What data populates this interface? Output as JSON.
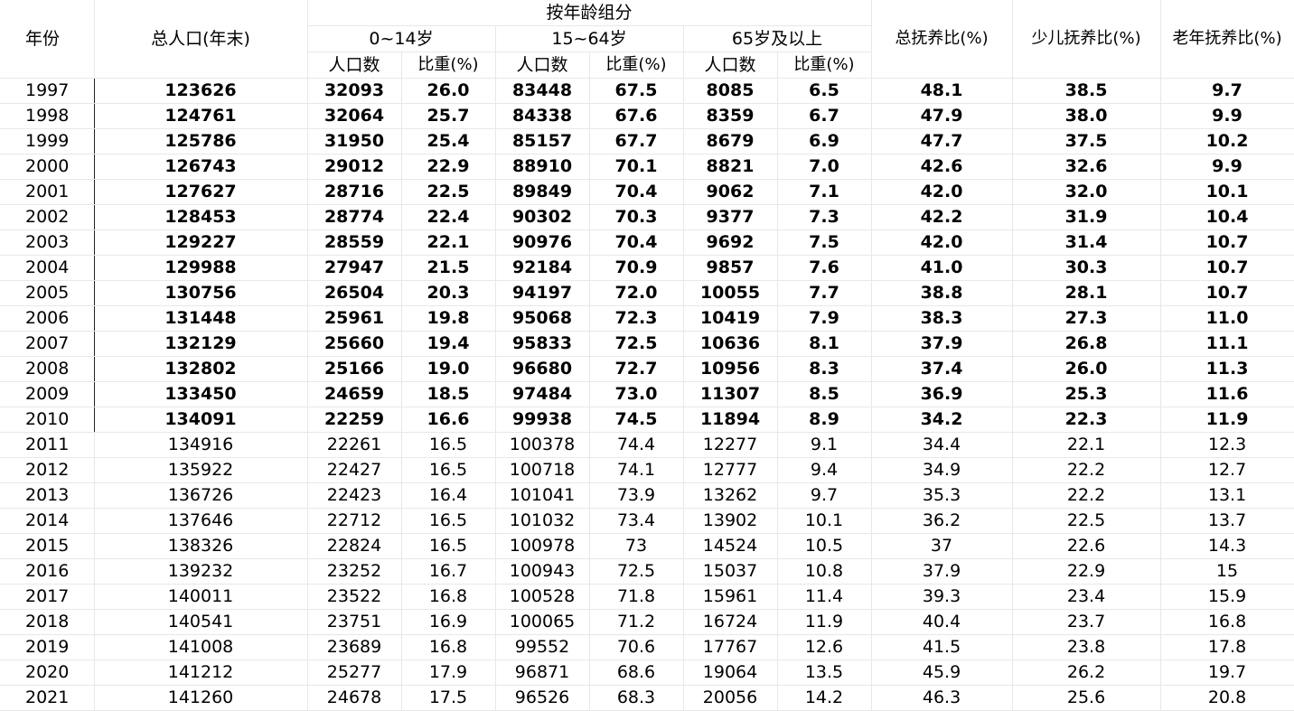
{
  "headers": {
    "year": "年份",
    "total_population": "总人口(年末)",
    "by_age_group": "按年龄组分",
    "group_0_14": "0~14岁",
    "group_15_64": "15~64岁",
    "group_65_plus": "65岁及以上",
    "population": "人口数",
    "share": "比重(%)",
    "total_dependency": "总抚养比(%)",
    "child_dependency": "少儿抚养比(%)",
    "old_dependency": "老年抚养比(%)"
  },
  "rows": [
    {
      "year": "1997",
      "total": "123626",
      "p0": "32093",
      "s0": "26.0",
      "p1": "83448",
      "s1": "67.5",
      "p2": "8085",
      "s2": "6.5",
      "td": "48.1",
      "cd": "38.5",
      "od": "9.7",
      "bold": true
    },
    {
      "year": "1998",
      "total": "124761",
      "p0": "32064",
      "s0": "25.7",
      "p1": "84338",
      "s1": "67.6",
      "p2": "8359",
      "s2": "6.7",
      "td": "47.9",
      "cd": "38.0",
      "od": "9.9",
      "bold": true
    },
    {
      "year": "1999",
      "total": "125786",
      "p0": "31950",
      "s0": "25.4",
      "p1": "85157",
      "s1": "67.7",
      "p2": "8679",
      "s2": "6.9",
      "td": "47.7",
      "cd": "37.5",
      "od": "10.2",
      "bold": true
    },
    {
      "year": "2000",
      "total": "126743",
      "p0": "29012",
      "s0": "22.9",
      "p1": "88910",
      "s1": "70.1",
      "p2": "8821",
      "s2": "7.0",
      "td": "42.6",
      "cd": "32.6",
      "od": "9.9",
      "bold": true
    },
    {
      "year": "2001",
      "total": "127627",
      "p0": "28716",
      "s0": "22.5",
      "p1": "89849",
      "s1": "70.4",
      "p2": "9062",
      "s2": "7.1",
      "td": "42.0",
      "cd": "32.0",
      "od": "10.1",
      "bold": true
    },
    {
      "year": "2002",
      "total": "128453",
      "p0": "28774",
      "s0": "22.4",
      "p1": "90302",
      "s1": "70.3",
      "p2": "9377",
      "s2": "7.3",
      "td": "42.2",
      "cd": "31.9",
      "od": "10.4",
      "bold": true
    },
    {
      "year": "2003",
      "total": "129227",
      "p0": "28559",
      "s0": "22.1",
      "p1": "90976",
      "s1": "70.4",
      "p2": "9692",
      "s2": "7.5",
      "td": "42.0",
      "cd": "31.4",
      "od": "10.7",
      "bold": true
    },
    {
      "year": "2004",
      "total": "129988",
      "p0": "27947",
      "s0": "21.5",
      "p1": "92184",
      "s1": "70.9",
      "p2": "9857",
      "s2": "7.6",
      "td": "41.0",
      "cd": "30.3",
      "od": "10.7",
      "bold": true
    },
    {
      "year": "2005",
      "total": "130756",
      "p0": "26504",
      "s0": "20.3",
      "p1": "94197",
      "s1": "72.0",
      "p2": "10055",
      "s2": "7.7",
      "td": "38.8",
      "cd": "28.1",
      "od": "10.7",
      "bold": true
    },
    {
      "year": "2006",
      "total": "131448",
      "p0": "25961",
      "s0": "19.8",
      "p1": "95068",
      "s1": "72.3",
      "p2": "10419",
      "s2": "7.9",
      "td": "38.3",
      "cd": "27.3",
      "od": "11.0",
      "bold": true
    },
    {
      "year": "2007",
      "total": "132129",
      "p0": "25660",
      "s0": "19.4",
      "p1": "95833",
      "s1": "72.5",
      "p2": "10636",
      "s2": "8.1",
      "td": "37.9",
      "cd": "26.8",
      "od": "11.1",
      "bold": true
    },
    {
      "year": "2008",
      "total": "132802",
      "p0": "25166",
      "s0": "19.0",
      "p1": "96680",
      "s1": "72.7",
      "p2": "10956",
      "s2": "8.3",
      "td": "37.4",
      "cd": "26.0",
      "od": "11.3",
      "bold": true
    },
    {
      "year": "2009",
      "total": "133450",
      "p0": "24659",
      "s0": "18.5",
      "p1": "97484",
      "s1": "73.0",
      "p2": "11307",
      "s2": "8.5",
      "td": "36.9",
      "cd": "25.3",
      "od": "11.6",
      "bold": true
    },
    {
      "year": "2010",
      "total": "134091",
      "p0": "22259",
      "s0": "16.6",
      "p1": "99938",
      "s1": "74.5",
      "p2": "11894",
      "s2": "8.9",
      "td": "34.2",
      "cd": "22.3",
      "od": "11.9",
      "bold": true
    },
    {
      "year": "2011",
      "total": "134916",
      "p0": "22261",
      "s0": "16.5",
      "p1": "100378",
      "s1": "74.4",
      "p2": "12277",
      "s2": "9.1",
      "td": "34.4",
      "cd": "22.1",
      "od": "12.3",
      "bold": false
    },
    {
      "year": "2012",
      "total": "135922",
      "p0": "22427",
      "s0": "16.5",
      "p1": "100718",
      "s1": "74.1",
      "p2": "12777",
      "s2": "9.4",
      "td": "34.9",
      "cd": "22.2",
      "od": "12.7",
      "bold": false
    },
    {
      "year": "2013",
      "total": "136726",
      "p0": "22423",
      "s0": "16.4",
      "p1": "101041",
      "s1": "73.9",
      "p2": "13262",
      "s2": "9.7",
      "td": "35.3",
      "cd": "22.2",
      "od": "13.1",
      "bold": false
    },
    {
      "year": "2014",
      "total": "137646",
      "p0": "22712",
      "s0": "16.5",
      "p1": "101032",
      "s1": "73.4",
      "p2": "13902",
      "s2": "10.1",
      "td": "36.2",
      "cd": "22.5",
      "od": "13.7",
      "bold": false
    },
    {
      "year": "2015",
      "total": "138326",
      "p0": "22824",
      "s0": "16.5",
      "p1": "100978",
      "s1": "73",
      "p2": "14524",
      "s2": "10.5",
      "td": "37",
      "cd": "22.6",
      "od": "14.3",
      "bold": false
    },
    {
      "year": "2016",
      "total": "139232",
      "p0": "23252",
      "s0": "16.7",
      "p1": "100943",
      "s1": "72.5",
      "p2": "15037",
      "s2": "10.8",
      "td": "37.9",
      "cd": "22.9",
      "od": "15",
      "bold": false
    },
    {
      "year": "2017",
      "total": "140011",
      "p0": "23522",
      "s0": "16.8",
      "p1": "100528",
      "s1": "71.8",
      "p2": "15961",
      "s2": "11.4",
      "td": "39.3",
      "cd": "23.4",
      "od": "15.9",
      "bold": false
    },
    {
      "year": "2018",
      "total": "140541",
      "p0": "23751",
      "s0": "16.9",
      "p1": "100065",
      "s1": "71.2",
      "p2": "16724",
      "s2": "11.9",
      "td": "40.4",
      "cd": "23.7",
      "od": "16.8",
      "bold": false
    },
    {
      "year": "2019",
      "total": "141008",
      "p0": "23689",
      "s0": "16.8",
      "p1": "99552",
      "s1": "70.6",
      "p2": "17767",
      "s2": "12.6",
      "td": "41.5",
      "cd": "23.8",
      "od": "17.8",
      "bold": false
    },
    {
      "year": "2020",
      "total": "141212",
      "p0": "25277",
      "s0": "17.9",
      "p1": "96871",
      "s1": "68.6",
      "p2": "19064",
      "s2": "13.5",
      "td": "45.9",
      "cd": "26.2",
      "od": "19.7",
      "bold": false
    },
    {
      "year": "2021",
      "total": "141260",
      "p0": "24678",
      "s0": "17.5",
      "p1": "96526",
      "s1": "68.3",
      "p2": "20056",
      "s2": "14.2",
      "td": "46.3",
      "cd": "25.6",
      "od": "20.8",
      "bold": false
    }
  ]
}
